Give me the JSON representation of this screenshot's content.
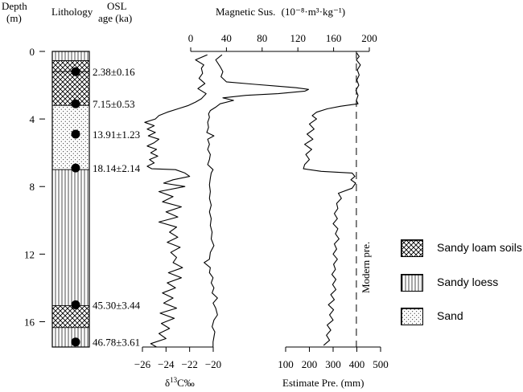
{
  "figure": {
    "header": {
      "depth": "Depth",
      "depth_unit": "(m)",
      "lithology": "Lithology",
      "osl": "OSL",
      "osl_unit": "age (ka)"
    },
    "legend": [
      {
        "label": "Sandy loam soils",
        "pattern": "crosshatch"
      },
      {
        "label": "Sandy loess",
        "pattern": "vertical-lines"
      },
      {
        "label": "Sand",
        "pattern": "dots"
      }
    ]
  },
  "chart_data": {
    "type": "line",
    "depth_axis": {
      "label": "Depth",
      "unit": "(m)",
      "ticks": [
        0,
        4,
        8,
        12,
        16
      ],
      "range": [
        0,
        17.5
      ],
      "inverted": true
    },
    "lithology": [
      {
        "from": 0,
        "to": 0.55,
        "type": "Sandy loess"
      },
      {
        "from": 0.55,
        "to": 1.2,
        "type": "Sandy loam soils"
      },
      {
        "from": 1.2,
        "to": 3.2,
        "type": "Sandy loam soils"
      },
      {
        "from": 3.2,
        "to": 7.0,
        "type": "Sand"
      },
      {
        "from": 7.0,
        "to": 15.05,
        "type": "Sandy loess"
      },
      {
        "from": 15.05,
        "to": 16.35,
        "type": "Sandy loam soils"
      },
      {
        "from": 16.35,
        "to": 17.5,
        "type": "Sandy loess"
      }
    ],
    "osl": [
      {
        "depth": 1.2,
        "label": "2.38±0.16"
      },
      {
        "depth": 3.1,
        "label": "7.15±0.53"
      },
      {
        "depth": 4.9,
        "label": "13.91±1.23"
      },
      {
        "depth": 6.9,
        "label": "18.14±2.14"
      },
      {
        "depth": 15.0,
        "label": "45.30±3.44"
      },
      {
        "depth": 17.2,
        "label": "46.78±3.61"
      }
    ],
    "series": [
      {
        "name": "δ13C",
        "axis": "d13c",
        "points": [
          [
            0.2,
            -20.5
          ],
          [
            0.5,
            -21.5
          ],
          [
            0.8,
            -20.8
          ],
          [
            1.0,
            -21.0
          ],
          [
            1.3,
            -20.9
          ],
          [
            1.6,
            -21.2
          ],
          [
            1.9,
            -20.7
          ],
          [
            2.2,
            -21.3
          ],
          [
            2.5,
            -20.6
          ],
          [
            2.8,
            -21.0
          ],
          [
            3.0,
            -21.5
          ],
          [
            3.2,
            -22.1
          ],
          [
            3.4,
            -23.0
          ],
          [
            3.6,
            -23.9
          ],
          [
            3.8,
            -24.6
          ],
          [
            4.0,
            -24.9
          ],
          [
            4.2,
            -25.8
          ],
          [
            4.4,
            -25.0
          ],
          [
            4.6,
            -25.6
          ],
          [
            4.8,
            -24.9
          ],
          [
            5.0,
            -25.5
          ],
          [
            5.2,
            -24.6
          ],
          [
            5.4,
            -25.0
          ],
          [
            5.6,
            -25.6
          ],
          [
            5.8,
            -24.8
          ],
          [
            6.0,
            -25.3
          ],
          [
            6.2,
            -24.7
          ],
          [
            6.4,
            -25.4
          ],
          [
            6.6,
            -25.0
          ],
          [
            6.8,
            -25.6
          ],
          [
            6.95,
            -25.2
          ],
          [
            7.0,
            -23.2
          ],
          [
            7.2,
            -22.4
          ],
          [
            7.4,
            -22.0
          ],
          [
            7.6,
            -23.4
          ],
          [
            7.8,
            -24.2
          ],
          [
            8.0,
            -22.4
          ],
          [
            8.3,
            -24.6
          ],
          [
            8.6,
            -23.4
          ],
          [
            8.9,
            -24.3
          ],
          [
            9.2,
            -22.7
          ],
          [
            9.5,
            -24.0
          ],
          [
            9.8,
            -23.0
          ],
          [
            10.1,
            -24.6
          ],
          [
            10.4,
            -23.1
          ],
          [
            10.7,
            -23.7
          ],
          [
            11.0,
            -23.0
          ],
          [
            11.3,
            -23.9
          ],
          [
            11.6,
            -22.8
          ],
          [
            11.9,
            -23.6
          ],
          [
            12.2,
            -23.1
          ],
          [
            12.5,
            -23.4
          ],
          [
            12.8,
            -22.6
          ],
          [
            13.1,
            -23.8
          ],
          [
            13.4,
            -22.7
          ],
          [
            13.7,
            -23.9
          ],
          [
            14.0,
            -23.2
          ],
          [
            14.3,
            -24.3
          ],
          [
            14.6,
            -23.4
          ],
          [
            14.9,
            -24.2
          ],
          [
            15.2,
            -23.1
          ],
          [
            15.5,
            -24.5
          ],
          [
            15.8,
            -23.3
          ],
          [
            16.1,
            -24.4
          ],
          [
            16.4,
            -23.7
          ],
          [
            16.7,
            -24.6
          ],
          [
            17.0,
            -24.0
          ],
          [
            17.3,
            -25.3
          ],
          [
            17.5,
            -24.8
          ]
        ]
      },
      {
        "name": "Magnetic Sus.",
        "axis": "mag",
        "points": [
          [
            0.2,
            35
          ],
          [
            0.5,
            28
          ],
          [
            0.9,
            33
          ],
          [
            1.2,
            36
          ],
          [
            1.5,
            34
          ],
          [
            1.8,
            40
          ],
          [
            1.95,
            72
          ],
          [
            2.05,
            95
          ],
          [
            2.15,
            118
          ],
          [
            2.25,
            132
          ],
          [
            2.35,
            128
          ],
          [
            2.5,
            98
          ],
          [
            2.6,
            62
          ],
          [
            2.75,
            36
          ],
          [
            2.9,
            48
          ],
          [
            3.1,
            33
          ],
          [
            3.3,
            28
          ],
          [
            3.5,
            22
          ],
          [
            3.7,
            20
          ],
          [
            3.9,
            21
          ],
          [
            4.2,
            19
          ],
          [
            4.5,
            20
          ],
          [
            4.8,
            18
          ],
          [
            5.0,
            26
          ],
          [
            5.2,
            19
          ],
          [
            5.5,
            21
          ],
          [
            5.8,
            19
          ],
          [
            6.1,
            22
          ],
          [
            6.4,
            21
          ],
          [
            6.7,
            19
          ],
          [
            7.0,
            25
          ],
          [
            7.2,
            23
          ],
          [
            7.5,
            22
          ],
          [
            7.9,
            21
          ],
          [
            8.3,
            22
          ],
          [
            8.7,
            21
          ],
          [
            9.1,
            23
          ],
          [
            9.5,
            21
          ],
          [
            9.9,
            23
          ],
          [
            10.3,
            22
          ],
          [
            10.7,
            24
          ],
          [
            11.1,
            23
          ],
          [
            11.5,
            26
          ],
          [
            11.9,
            22
          ],
          [
            12.3,
            21
          ],
          [
            12.5,
            15
          ],
          [
            12.8,
            22
          ],
          [
            13.1,
            21
          ],
          [
            13.4,
            25
          ],
          [
            13.7,
            23
          ],
          [
            14.0,
            26
          ],
          [
            14.3,
            24
          ],
          [
            14.6,
            30
          ],
          [
            14.9,
            25
          ],
          [
            15.2,
            28
          ],
          [
            15.6,
            30
          ],
          [
            15.9,
            26
          ],
          [
            16.3,
            24
          ],
          [
            16.6,
            27
          ],
          [
            16.9,
            26
          ],
          [
            17.2,
            25
          ],
          [
            17.5,
            25
          ]
        ]
      },
      {
        "name": "Estimate Pre.",
        "axis": "pre",
        "points": [
          [
            0.1,
            400
          ],
          [
            0.3,
            410
          ],
          [
            0.5,
            398
          ],
          [
            0.8,
            415
          ],
          [
            1.1,
            402
          ],
          [
            1.4,
            410
          ],
          [
            1.7,
            400
          ],
          [
            2.0,
            408
          ],
          [
            2.3,
            396
          ],
          [
            2.6,
            405
          ],
          [
            2.9,
            398
          ],
          [
            3.1,
            405
          ],
          [
            3.25,
            330
          ],
          [
            3.4,
            275
          ],
          [
            3.6,
            230
          ],
          [
            3.8,
            212
          ],
          [
            4.0,
            230
          ],
          [
            4.3,
            200
          ],
          [
            4.6,
            220
          ],
          [
            4.9,
            190
          ],
          [
            5.2,
            215
          ],
          [
            5.5,
            180
          ],
          [
            5.8,
            210
          ],
          [
            6.1,
            185
          ],
          [
            6.4,
            200
          ],
          [
            6.7,
            180
          ],
          [
            6.95,
            175
          ],
          [
            7.1,
            250
          ],
          [
            7.2,
            380
          ],
          [
            7.4,
            392
          ],
          [
            7.6,
            375
          ],
          [
            7.8,
            395
          ],
          [
            8.1,
            380
          ],
          [
            8.4,
            322
          ],
          [
            8.7,
            335
          ],
          [
            9.0,
            315
          ],
          [
            9.3,
            320
          ],
          [
            9.6,
            305
          ],
          [
            9.9,
            318
          ],
          [
            10.2,
            300
          ],
          [
            10.5,
            320
          ],
          [
            10.8,
            310
          ],
          [
            11.1,
            325
          ],
          [
            11.4,
            305
          ],
          [
            11.7,
            315
          ],
          [
            12.0,
            300
          ],
          [
            12.3,
            318
          ],
          [
            12.6,
            302
          ],
          [
            12.9,
            310
          ],
          [
            13.2,
            295
          ],
          [
            13.5,
            312
          ],
          [
            13.8,
            298
          ],
          [
            14.1,
            312
          ],
          [
            14.4,
            290
          ],
          [
            14.7,
            305
          ],
          [
            15.0,
            280
          ],
          [
            15.3,
            302
          ],
          [
            15.6,
            285
          ],
          [
            15.9,
            300
          ],
          [
            16.2,
            275
          ],
          [
            16.5,
            290
          ],
          [
            16.8,
            272
          ],
          [
            17.1,
            285
          ],
          [
            17.4,
            260
          ]
        ]
      }
    ],
    "reference_line": {
      "name": "Modern pre.",
      "axis": "pre",
      "value": 398
    },
    "axes": [
      {
        "id": "mag",
        "label": "Magnetic Sus.",
        "unit": "(10⁻⁸·m³·kg⁻¹)",
        "position": "top",
        "range": [
          0,
          200
        ],
        "ticks": [
          0,
          40,
          80,
          120,
          160,
          200
        ]
      },
      {
        "id": "d13c",
        "label": "δ13C‰",
        "position": "bottom",
        "range": [
          -26,
          -20
        ],
        "ticks": [
          -26,
          -24,
          -22,
          -20
        ]
      },
      {
        "id": "pre",
        "label": "Estimate Pre. (mm)",
        "position": "bottom",
        "range": [
          100,
          500
        ],
        "ticks": [
          100,
          200,
          300,
          400,
          500
        ]
      }
    ]
  }
}
